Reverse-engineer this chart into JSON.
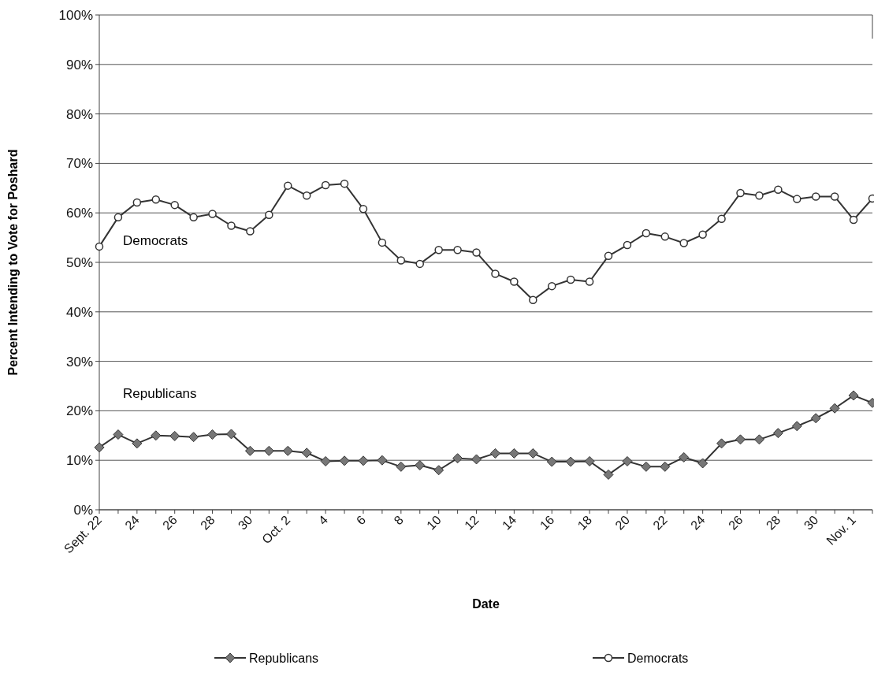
{
  "chart_data": {
    "type": "line",
    "xlabel": "Date",
    "ylabel": "Percent Intending to Vote for Poshard",
    "categories": [
      "Sept. 22",
      null,
      "24",
      null,
      "26",
      null,
      "28",
      null,
      "30",
      null,
      "Oct. 2",
      null,
      "4",
      null,
      "6",
      null,
      "8",
      null,
      "10",
      null,
      "12",
      null,
      "14",
      null,
      "16",
      null,
      "18",
      null,
      "20",
      null,
      "22",
      null,
      "24",
      null,
      "26",
      null,
      "28",
      null,
      "30",
      null,
      "Nov. 1",
      null
    ],
    "series": [
      {
        "name": "Republicans",
        "color": "#333333",
        "marker": "diamond",
        "values": [
          12.6,
          15.2,
          13.4,
          15.0,
          14.9,
          14.7,
          15.2,
          15.3,
          11.9,
          11.9,
          11.9,
          11.5,
          9.8,
          9.9,
          9.9,
          10.0,
          8.7,
          9.0,
          8.0,
          10.4,
          10.2,
          11.4,
          11.4,
          11.4,
          9.7,
          9.7,
          9.8,
          7.1,
          9.8,
          8.7,
          8.7,
          10.6,
          9.4,
          13.4,
          14.2,
          14.2,
          15.5,
          16.9,
          18.5,
          20.5,
          23.1,
          21.6
        ]
      },
      {
        "name": "Democrats",
        "color": "#333333",
        "marker": "circle",
        "values": [
          53.2,
          59.1,
          62.1,
          62.7,
          61.6,
          59.1,
          59.8,
          57.4,
          56.3,
          59.6,
          65.5,
          63.5,
          65.6,
          65.9,
          60.8,
          54.0,
          50.4,
          49.7,
          52.5,
          52.5,
          52.0,
          47.7,
          46.1,
          42.4,
          45.2,
          46.5,
          46.1,
          51.3,
          53.5,
          55.9,
          55.2,
          53.9,
          55.6,
          58.8,
          64.0,
          63.5,
          64.7,
          62.8,
          63.3,
          63.3,
          58.6,
          62.9
        ]
      }
    ],
    "annotations": [
      "Republicans",
      "Democrats"
    ],
    "ylim": [
      0,
      100
    ],
    "yticks": [
      {
        "value": 0,
        "label": "0%"
      },
      {
        "value": 10,
        "label": "10%"
      },
      {
        "value": 20,
        "label": "20%"
      },
      {
        "value": 30,
        "label": "30%"
      },
      {
        "value": 40,
        "label": "40%"
      },
      {
        "value": 50,
        "label": "50%"
      },
      {
        "value": 60,
        "label": "60%"
      },
      {
        "value": 70,
        "label": "70%"
      },
      {
        "value": 80,
        "label": "80%"
      },
      {
        "value": 90,
        "label": "90%"
      },
      {
        "value": 100,
        "label": "100%"
      }
    ],
    "grid": "y",
    "legend": "bottom",
    "line_style": "solid"
  }
}
